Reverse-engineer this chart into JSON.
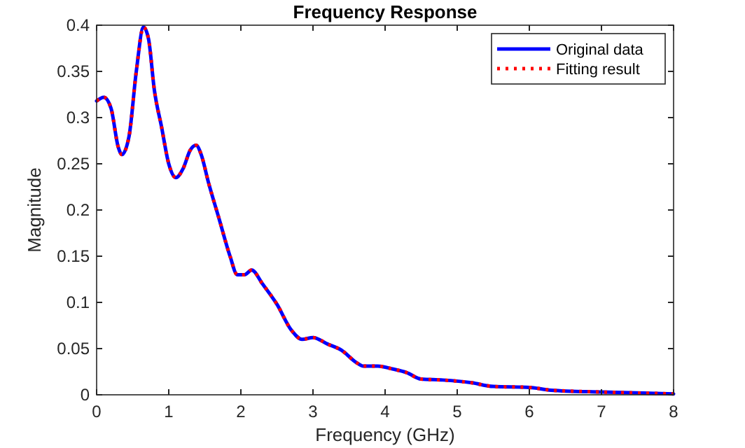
{
  "chart_data": {
    "type": "line",
    "title": "Frequency Response",
    "xlabel": "Frequency (GHz)",
    "ylabel": "Magnitude",
    "xlim": [
      0,
      8
    ],
    "xticks": [
      0,
      1,
      2,
      3,
      4,
      5,
      6,
      7,
      8
    ],
    "ylim": [
      0,
      0.4
    ],
    "yticks": [
      0,
      0.05,
      0.1,
      0.15,
      0.2,
      0.25,
      0.3,
      0.35,
      0.4
    ],
    "x": [
      0,
      0.1,
      0.2,
      0.3,
      0.35,
      0.45,
      0.55,
      0.65,
      0.72,
      0.8,
      0.9,
      1.0,
      1.1,
      1.2,
      1.3,
      1.38,
      1.45,
      1.55,
      1.7,
      1.85,
      1.95,
      2.05,
      2.15,
      2.3,
      2.5,
      2.7,
      2.85,
      3.0,
      3.2,
      3.4,
      3.6,
      3.7,
      3.9,
      4.1,
      4.3,
      4.5,
      4.8,
      5.2,
      5.5,
      6.0,
      6.3,
      7.0,
      7.5,
      8.0
    ],
    "series": [
      {
        "name": "Original data",
        "color": "#0000ff",
        "line_style": "solid",
        "values": [
          0.318,
          0.322,
          0.31,
          0.268,
          0.26,
          0.28,
          0.35,
          0.398,
          0.385,
          0.33,
          0.29,
          0.25,
          0.235,
          0.245,
          0.265,
          0.27,
          0.26,
          0.23,
          0.19,
          0.15,
          0.13,
          0.13,
          0.135,
          0.12,
          0.098,
          0.07,
          0.06,
          0.062,
          0.055,
          0.048,
          0.035,
          0.031,
          0.031,
          0.028,
          0.024,
          0.017,
          0.016,
          0.013,
          0.009,
          0.008,
          0.005,
          0.003,
          0.002,
          0.001
        ]
      },
      {
        "name": "Fitting result",
        "color": "#ff0000",
        "line_style": "dotted",
        "values": [
          0.318,
          0.322,
          0.31,
          0.268,
          0.26,
          0.28,
          0.35,
          0.398,
          0.385,
          0.33,
          0.29,
          0.25,
          0.235,
          0.245,
          0.265,
          0.27,
          0.26,
          0.23,
          0.19,
          0.15,
          0.13,
          0.13,
          0.135,
          0.12,
          0.098,
          0.07,
          0.06,
          0.062,
          0.055,
          0.048,
          0.035,
          0.031,
          0.031,
          0.028,
          0.024,
          0.017,
          0.016,
          0.013,
          0.009,
          0.008,
          0.005,
          0.003,
          0.002,
          0.001
        ]
      }
    ],
    "legend": "top right",
    "grid": false
  }
}
